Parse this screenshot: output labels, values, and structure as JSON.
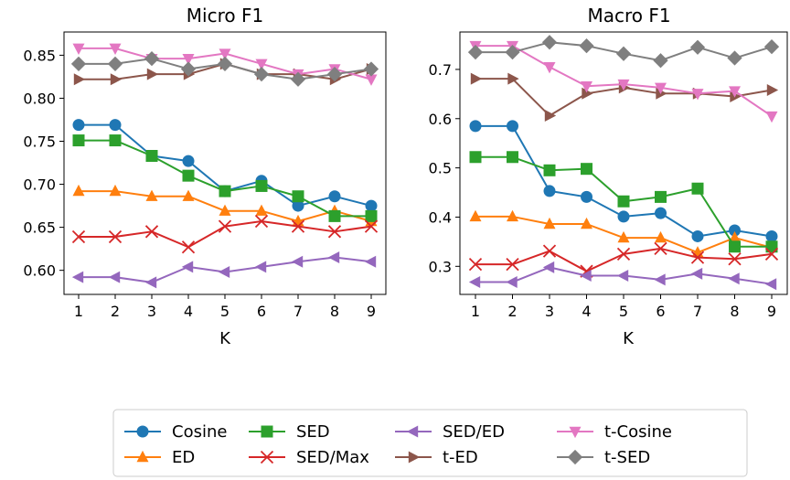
{
  "chart_data": [
    {
      "type": "line",
      "title": "Micro F1",
      "xlabel": "K",
      "ylabel": "",
      "x": [
        1,
        2,
        3,
        4,
        5,
        6,
        7,
        8,
        9
      ],
      "xticks": [
        "1",
        "2",
        "3",
        "4",
        "5",
        "6",
        "7",
        "8",
        "9"
      ],
      "ylim": [
        0.572,
        0.877
      ],
      "yticks": [
        "0.60",
        "0.65",
        "0.70",
        "0.75",
        "0.80",
        "0.85"
      ],
      "grid": false,
      "series": [
        {
          "name": "Cosine",
          "values": [
            0.769,
            0.769,
            0.733,
            0.727,
            0.692,
            0.704,
            0.675,
            0.686,
            0.675
          ]
        },
        {
          "name": "ED",
          "values": [
            0.692,
            0.692,
            0.686,
            0.686,
            0.669,
            0.669,
            0.657,
            0.669,
            0.657
          ]
        },
        {
          "name": "SED",
          "values": [
            0.751,
            0.751,
            0.733,
            0.71,
            0.692,
            0.698,
            0.686,
            0.663,
            0.663
          ]
        },
        {
          "name": "SED/Max",
          "values": [
            0.639,
            0.639,
            0.645,
            0.627,
            0.651,
            0.657,
            0.651,
            0.645,
            0.651
          ]
        },
        {
          "name": "SED/ED",
          "values": [
            0.592,
            0.592,
            0.586,
            0.604,
            0.598,
            0.604,
            0.61,
            0.615,
            0.61
          ]
        },
        {
          "name": "t-ED",
          "values": [
            0.822,
            0.822,
            0.828,
            0.828,
            0.84,
            0.828,
            0.828,
            0.822,
            0.834
          ]
        },
        {
          "name": "t-Cosine",
          "values": [
            0.858,
            0.858,
            0.846,
            0.846,
            0.852,
            0.84,
            0.828,
            0.834,
            0.822
          ]
        },
        {
          "name": "t-SED",
          "values": [
            0.84,
            0.84,
            0.846,
            0.834,
            0.84,
            0.828,
            0.822,
            0.828,
            0.834
          ]
        }
      ]
    },
    {
      "type": "line",
      "title": "Macro F1",
      "xlabel": "K",
      "ylabel": "",
      "x": [
        1,
        2,
        3,
        4,
        5,
        6,
        7,
        8,
        9
      ],
      "xticks": [
        "1",
        "2",
        "3",
        "4",
        "5",
        "6",
        "7",
        "8",
        "9"
      ],
      "ylim": [
        0.243,
        0.776
      ],
      "yticks": [
        "0.3",
        "0.4",
        "0.5",
        "0.6",
        "0.7"
      ],
      "grid": false,
      "series": [
        {
          "name": "Cosine",
          "values": [
            0.585,
            0.585,
            0.453,
            0.441,
            0.401,
            0.408,
            0.361,
            0.373,
            0.361
          ]
        },
        {
          "name": "ED",
          "values": [
            0.401,
            0.401,
            0.386,
            0.386,
            0.358,
            0.358,
            0.328,
            0.358,
            0.338
          ]
        },
        {
          "name": "SED",
          "values": [
            0.522,
            0.522,
            0.495,
            0.498,
            0.432,
            0.441,
            0.458,
            0.34,
            0.34
          ]
        },
        {
          "name": "SED/Max",
          "values": [
            0.304,
            0.304,
            0.331,
            0.29,
            0.325,
            0.336,
            0.318,
            0.315,
            0.325
          ]
        },
        {
          "name": "SED/ED",
          "values": [
            0.268,
            0.268,
            0.298,
            0.281,
            0.281,
            0.273,
            0.285,
            0.275,
            0.264
          ]
        },
        {
          "name": "t-ED",
          "values": [
            0.681,
            0.681,
            0.606,
            0.651,
            0.663,
            0.651,
            0.651,
            0.645,
            0.658
          ]
        },
        {
          "name": "t-Cosine",
          "values": [
            0.748,
            0.748,
            0.705,
            0.666,
            0.67,
            0.663,
            0.651,
            0.656,
            0.605
          ]
        },
        {
          "name": "t-SED",
          "values": [
            0.735,
            0.735,
            0.755,
            0.748,
            0.732,
            0.718,
            0.745,
            0.723,
            0.746
          ]
        }
      ]
    }
  ],
  "legend": {
    "placement": "bottom-center",
    "columns": 4,
    "entries": [
      {
        "name": "Cosine",
        "color": "#1f77b4",
        "marker": "circle"
      },
      {
        "name": "ED",
        "color": "#ff7f0e",
        "marker": "triangle-up"
      },
      {
        "name": "SED",
        "color": "#2ca02c",
        "marker": "square"
      },
      {
        "name": "SED/Max",
        "color": "#d62728",
        "marker": "x"
      },
      {
        "name": "SED/ED",
        "color": "#9467bd",
        "marker": "triangle-left"
      },
      {
        "name": "t-ED",
        "color": "#8c564b",
        "marker": "triangle-right"
      },
      {
        "name": "t-Cosine",
        "color": "#e377c2",
        "marker": "triangle-down"
      },
      {
        "name": "t-SED",
        "color": "#7f7f7f",
        "marker": "diamond"
      }
    ]
  }
}
